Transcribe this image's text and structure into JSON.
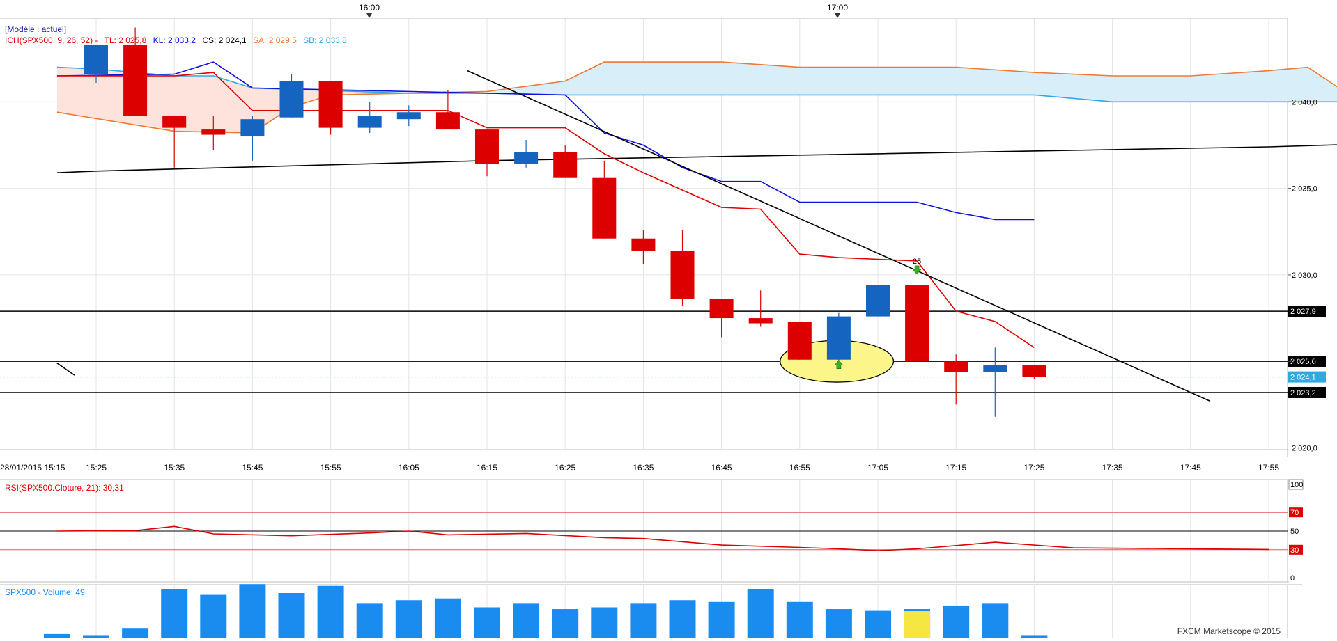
{
  "header": {
    "model_label": "[Modèle : actuel]",
    "ich_label": "ICH(SPX500, 9, 26, 52) -",
    "tl_label": "TL: 2 025,8",
    "kl_label": "KL: 2 033,2",
    "cs_label": "CS: 2 024,1",
    "sa_label": "SA: 2 029,5",
    "sb_label": "SB: 2 033,8"
  },
  "colors": {
    "up": "#1565c0",
    "down": "#dd0000",
    "tenkan": "#e00000",
    "kijun": "#1010dd",
    "senkou_a": "#f07830",
    "senkou_b": "#30a8e0",
    "cloud_bull": "#d8eef9",
    "cloud_bear": "#fde3dc",
    "volume": "#1a8cf0",
    "rsi": "#dd0000",
    "grid": "#e4e4e4"
  },
  "top_time_labels": [
    "16:00",
    "17:00"
  ],
  "footer": {
    "credit": "FXCM Marketscope © 2015"
  },
  "chart_data": [
    {
      "type": "candlestick",
      "instrument": "SPX500",
      "x_first_label": "28/01/2015 15:15",
      "x_tick_labels": [
        "15:25",
        "15:35",
        "15:45",
        "15:55",
        "16:05",
        "16:15",
        "16:25",
        "16:35",
        "16:45",
        "16:55",
        "17:05",
        "17:15",
        "17:25",
        "17:35",
        "17:45",
        "17:55"
      ],
      "y_tick_labels": [
        "2 040,0",
        "2 035,0",
        "2 030,0",
        "2 025,0",
        "2 020,0"
      ],
      "y_ticks": [
        2040,
        2035,
        2030,
        2025,
        2020
      ],
      "ylim": [
        2019.9,
        2044.8
      ],
      "candles": [
        {
          "t": "15:25",
          "o": 2041.6,
          "h": 2043.3,
          "l": 2041.1,
          "c": 2043.3
        },
        {
          "t": "15:30",
          "o": 2043.3,
          "h": 2044.3,
          "l": 2039.2,
          "c": 2039.2
        },
        {
          "t": "15:35",
          "o": 2039.2,
          "h": 2039.2,
          "l": 2036.2,
          "c": 2038.5
        },
        {
          "t": "15:40",
          "o": 2038.4,
          "h": 2039.2,
          "l": 2037.2,
          "c": 2038.1
        },
        {
          "t": "15:45",
          "o": 2038.0,
          "h": 2039.2,
          "l": 2036.6,
          "c": 2039.0
        },
        {
          "t": "15:50",
          "o": 2039.1,
          "h": 2041.6,
          "l": 2039.1,
          "c": 2041.2
        },
        {
          "t": "15:55",
          "o": 2041.2,
          "h": 2041.2,
          "l": 2038.1,
          "c": 2038.5
        },
        {
          "t": "16:00",
          "o": 2038.5,
          "h": 2040.0,
          "l": 2038.2,
          "c": 2039.2
        },
        {
          "t": "16:05",
          "o": 2039.0,
          "h": 2039.8,
          "l": 2038.6,
          "c": 2039.4
        },
        {
          "t": "16:10",
          "o": 2039.4,
          "h": 2040.7,
          "l": 2038.5,
          "c": 2038.4
        },
        {
          "t": "16:15",
          "o": 2038.4,
          "h": 2038.4,
          "l": 2035.7,
          "c": 2036.4
        },
        {
          "t": "16:20",
          "o": 2036.4,
          "h": 2037.8,
          "l": 2036.2,
          "c": 2037.1
        },
        {
          "t": "16:25",
          "o": 2037.1,
          "h": 2037.5,
          "l": 2035.6,
          "c": 2035.6
        },
        {
          "t": "16:30",
          "o": 2035.6,
          "h": 2036.6,
          "l": 2032.1,
          "c": 2032.1
        },
        {
          "t": "16:35",
          "o": 2032.1,
          "h": 2032.6,
          "l": 2030.6,
          "c": 2031.4
        },
        {
          "t": "16:40",
          "o": 2031.4,
          "h": 2032.6,
          "l": 2028.2,
          "c": 2028.6
        },
        {
          "t": "16:45",
          "o": 2028.6,
          "h": 2028.6,
          "l": 2026.4,
          "c": 2027.5
        },
        {
          "t": "16:50",
          "o": 2027.5,
          "h": 2029.1,
          "l": 2027.0,
          "c": 2027.2
        },
        {
          "t": "16:55",
          "o": 2027.3,
          "h": 2027.3,
          "l": 2025.1,
          "c": 2025.1
        },
        {
          "t": "17:00",
          "o": 2025.1,
          "h": 2027.8,
          "l": 2024.6,
          "c": 2027.6
        },
        {
          "t": "17:05",
          "o": 2027.6,
          "h": 2029.4,
          "l": 2027.6,
          "c": 2029.4
        },
        {
          "t": "17:10",
          "o": 2029.4,
          "h": 2029.4,
          "l": 2025.0,
          "c": 2025.0
        },
        {
          "t": "17:15",
          "o": 2025.0,
          "h": 2025.4,
          "l": 2022.5,
          "c": 2024.4
        },
        {
          "t": "17:20",
          "o": 2024.4,
          "h": 2025.8,
          "l": 2021.8,
          "c": 2024.8
        },
        {
          "t": "17:25",
          "o": 2024.8,
          "h": 2024.8,
          "l": 2024.0,
          "c": 2024.1
        }
      ],
      "tenkan": [
        [
          -1,
          2041.5
        ],
        [
          2,
          2041.5
        ],
        [
          3,
          2041.7
        ],
        [
          4,
          2039.5
        ],
        [
          9,
          2039.5
        ],
        [
          10,
          2038.5
        ],
        [
          12,
          2038.5
        ],
        [
          13,
          2037.0
        ],
        [
          14,
          2035.9
        ],
        [
          15,
          2034.9
        ],
        [
          16,
          2033.9
        ],
        [
          17,
          2033.8
        ],
        [
          18,
          2031.2
        ],
        [
          19,
          2031.0
        ],
        [
          20,
          2030.9
        ],
        [
          21,
          2030.8
        ],
        [
          22,
          2027.9
        ],
        [
          23,
          2027.3
        ],
        [
          24,
          2025.8
        ]
      ],
      "kijun": [
        [
          -1,
          2041.5
        ],
        [
          2,
          2041.6
        ],
        [
          3,
          2042.3
        ],
        [
          4,
          2040.8
        ],
        [
          12,
          2040.4
        ],
        [
          13,
          2038.2
        ],
        [
          14,
          2037.5
        ],
        [
          15,
          2036.2
        ],
        [
          16,
          2035.4
        ],
        [
          17,
          2035.4
        ],
        [
          18,
          2034.2
        ],
        [
          21,
          2034.2
        ],
        [
          22,
          2033.6
        ],
        [
          23,
          2033.2
        ],
        [
          24,
          2033.2
        ]
      ],
      "senkou_a": [
        [
          -1,
          2039.4
        ],
        [
          2,
          2038.3
        ],
        [
          4,
          2038.2
        ],
        [
          5,
          2039.7
        ],
        [
          6,
          2040.4
        ],
        [
          8,
          2040.5
        ],
        [
          10,
          2040.6
        ],
        [
          12,
          2041.2
        ],
        [
          13,
          2042.3
        ],
        [
          16,
          2042.3
        ],
        [
          18,
          2042.0
        ],
        [
          22,
          2042.0
        ],
        [
          24,
          2041.7
        ],
        [
          26,
          2041.5
        ],
        [
          28,
          2041.5
        ],
        [
          30,
          2041.8
        ],
        [
          31,
          2042.0
        ],
        [
          32,
          2040.5
        ],
        [
          34,
          2040.5
        ],
        [
          36,
          2040.5
        ]
      ],
      "senkou_b": [
        [
          -1,
          2042.0
        ],
        [
          0,
          2041.9
        ],
        [
          2,
          2041.5
        ],
        [
          3,
          2041.5
        ],
        [
          4,
          2040.8
        ],
        [
          8,
          2040.5
        ],
        [
          10,
          2040.5
        ],
        [
          12,
          2040.4
        ],
        [
          24,
          2040.4
        ],
        [
          26,
          2040.0
        ],
        [
          28,
          2040.0
        ],
        [
          34,
          2040.0
        ],
        [
          36,
          2040.2
        ]
      ],
      "chikou": [
        [
          -1,
          2035.9
        ],
        [
          0,
          2036.0
        ],
        [
          10,
          2036.6
        ],
        [
          20,
          2037.0
        ],
        [
          30,
          2037.4
        ],
        [
          33,
          2037.6
        ]
      ],
      "trendline": [
        [
          9.5,
          2041.8
        ],
        [
          28.5,
          2022.7
        ]
      ],
      "horizontal_levels": [
        2027.9,
        2025.0,
        2023.2
      ],
      "level_labels": [
        "2 027,9",
        "2 025,0",
        "2 023,2"
      ],
      "current_price": {
        "value": 2024.1,
        "label": "2 024,1"
      },
      "left_stub": [
        [
          -1,
          2024.9
        ],
        [
          -0.55,
          2024.2
        ]
      ],
      "highlight_ellipse": {
        "x_center": 18.95,
        "y_center": 2025.0,
        "x_radius": 1.45,
        "y_radius": 1.2
      },
      "annotations": [
        {
          "type": "arrow-down",
          "index": 21,
          "value": 2030.2,
          "label": "25"
        },
        {
          "type": "arrow-up",
          "index": 19,
          "value": 2024.9,
          "label": ""
        }
      ]
    },
    {
      "type": "line",
      "title": "RSI(SPX500.Cloture, 21): 30,31",
      "y_tick_labels": [
        "100",
        "70",
        "50",
        "30",
        "0"
      ],
      "ylim": [
        0,
        100
      ],
      "levels": [
        70,
        50,
        30
      ],
      "values": [
        [
          -1,
          50
        ],
        [
          1,
          50.5
        ],
        [
          2,
          55
        ],
        [
          3,
          47
        ],
        [
          5,
          45
        ],
        [
          7,
          48
        ],
        [
          8,
          50
        ],
        [
          9,
          46
        ],
        [
          11,
          47.5
        ],
        [
          13,
          43
        ],
        [
          14,
          42
        ],
        [
          16,
          35
        ],
        [
          18,
          32.5
        ],
        [
          19,
          31
        ],
        [
          20,
          29
        ],
        [
          21,
          31
        ],
        [
          23,
          38
        ],
        [
          25,
          32
        ],
        [
          30,
          30.31
        ]
      ]
    },
    {
      "type": "bar",
      "title": "SPX500 - Volume: 49",
      "values": [
        2,
        1,
        5,
        27,
        24,
        30,
        25,
        29,
        19,
        21,
        22,
        17,
        19,
        16,
        17,
        19,
        21,
        20,
        27,
        20,
        16,
        15,
        16,
        18,
        19,
        1
      ],
      "highlight": {
        "index": 22,
        "color": "#f5e642"
      }
    }
  ]
}
